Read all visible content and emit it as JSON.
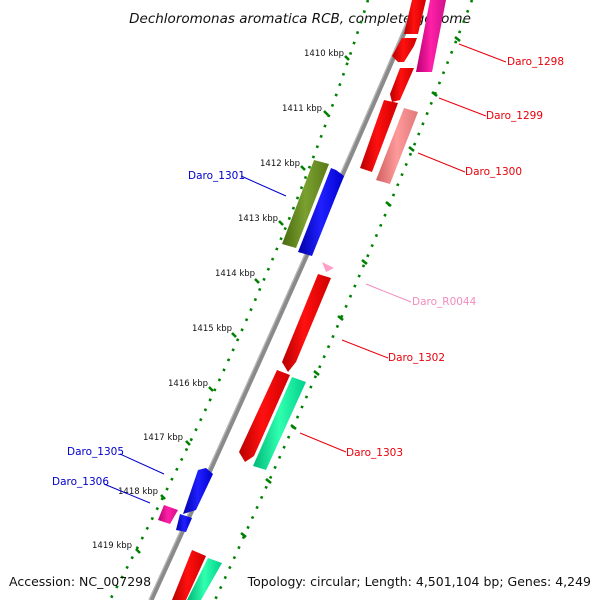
{
  "title": "Dechloromonas aromatica RCB, complete genome",
  "accession": "Accession: NC_007298",
  "topology": "Topology: circular; Length: 4,501,104 bp; Genes: 4,249",
  "ticks": [
    "1410 kbp",
    "1411 kbp",
    "1412 kbp",
    "1413 kbp",
    "1414 kbp",
    "1415 kbp",
    "1416 kbp",
    "1417 kbp",
    "1418 kbp",
    "1419 kbp"
  ],
  "genes": [
    {
      "name": "Daro_1298",
      "color": "#e8000b",
      "track": "forward"
    },
    {
      "name": "Daro_1299",
      "color": "#e8000b",
      "track": "forward"
    },
    {
      "name": "Daro_1300",
      "color": "#e8000b",
      "track": "forward"
    },
    {
      "name": "Daro_1301",
      "color": "#0000cc",
      "track": "reverse"
    },
    {
      "name": "Daro_R0044",
      "color": "#f08cbd",
      "track": "forward"
    },
    {
      "name": "Daro_1302",
      "color": "#e8000b",
      "track": "forward"
    },
    {
      "name": "Daro_1303",
      "color": "#e8000b",
      "track": "forward"
    },
    {
      "name": "Daro_1305",
      "color": "#0000cc",
      "track": "reverse"
    },
    {
      "name": "Daro_1306",
      "color": "#0000cc",
      "track": "reverse"
    }
  ],
  "colors": {
    "backbone": "#808080",
    "tick_marks": "#008000",
    "feature_red": "#ff0000",
    "feature_pink": "#e8189a",
    "feature_salmon": "#f08888",
    "feature_olive": "#6b8e23",
    "feature_blue": "#0000ff",
    "feature_green": "#00f09a",
    "feature_rna": "#ff9ec8"
  }
}
